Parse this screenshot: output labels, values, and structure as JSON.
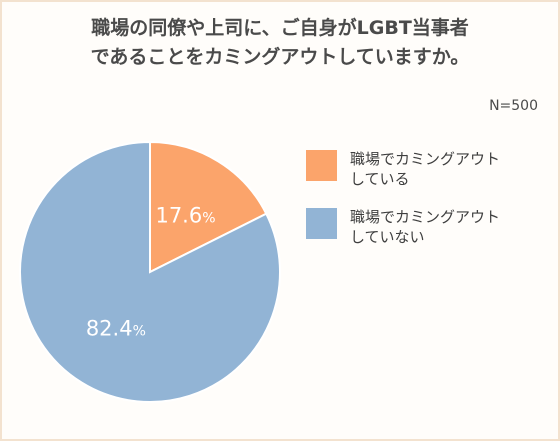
{
  "title": {
    "line1": "職場の同僚や上司に、ご自身がLGBT当事者",
    "line2": "であることをカミングアウトしていますか。"
  },
  "sample_size": "N=500",
  "chart_data": {
    "type": "pie",
    "slices": [
      {
        "label_line1": "職場でカミングアウト",
        "label_line2": "している",
        "value": 17.6,
        "value_label": "17.6%",
        "color": "#fba46b"
      },
      {
        "label_line1": "職場でカミングアウト",
        "label_line2": "していない",
        "value": 82.4,
        "value_label": "82.4%",
        "color": "#92b4d5"
      }
    ],
    "legend_position": "right"
  }
}
